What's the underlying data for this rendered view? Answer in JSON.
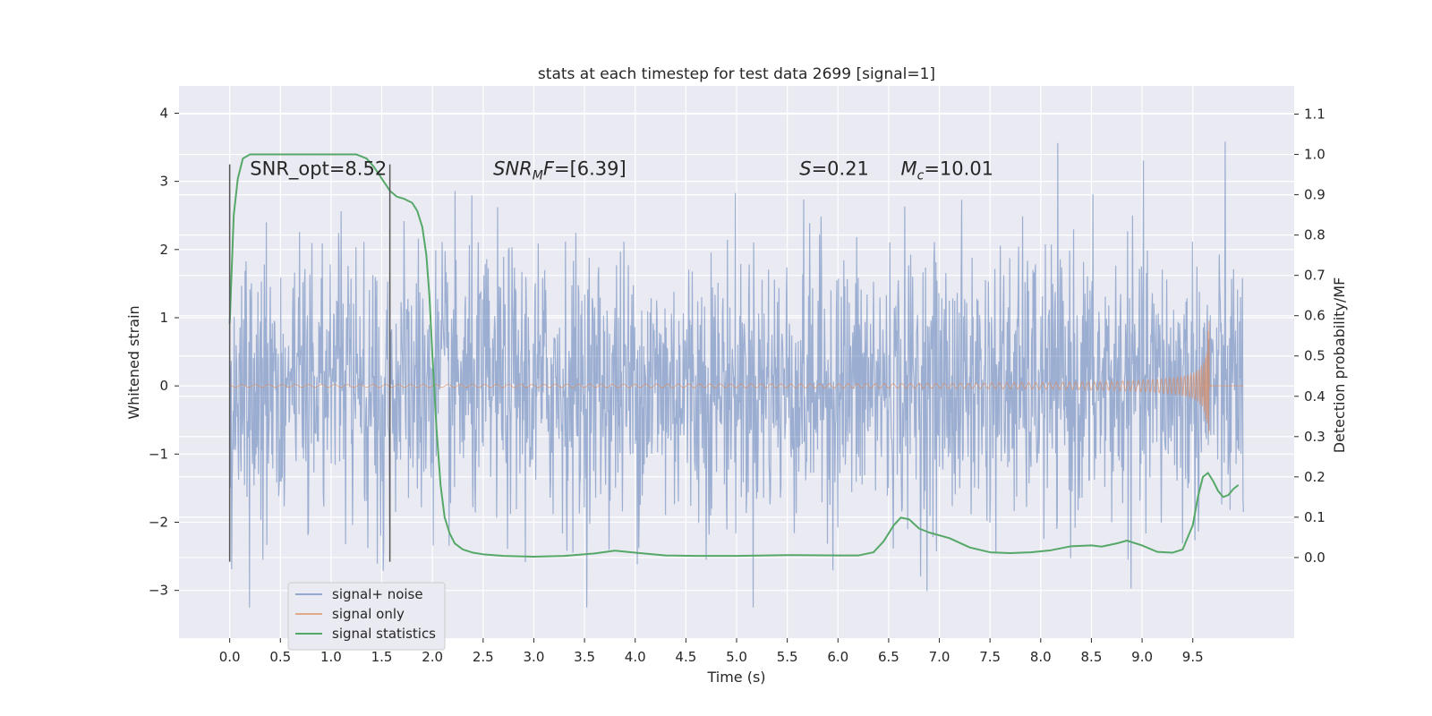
{
  "chart_data": {
    "type": "line",
    "title": "stats at each timestep for test data 2699 [signal=1]",
    "xlabel": "Time (s)",
    "ylabel": "Whitened strain",
    "ylabel_right": "Detection probability/MF",
    "xlim": [
      -0.5,
      10.5
    ],
    "ylim": [
      -3.7,
      4.4
    ],
    "ylim_right": [
      -0.2,
      1.17
    ],
    "grid": true,
    "legend_position": "lower-left",
    "xticks": [
      0.0,
      0.5,
      1.0,
      1.5,
      2.0,
      2.5,
      3.0,
      3.5,
      4.0,
      4.5,
      5.0,
      5.5,
      6.0,
      6.5,
      7.0,
      7.5,
      8.0,
      8.5,
      9.0,
      9.5
    ],
    "xtick_labels": [
      "0.0",
      "0.5",
      "1.0",
      "1.5",
      "2.0",
      "2.5",
      "3.0",
      "3.5",
      "4.0",
      "4.5",
      "5.0",
      "5.5",
      "6.0",
      "6.5",
      "7.0",
      "7.5",
      "8.0",
      "8.5",
      "9.0",
      "9.5"
    ],
    "yticks": [
      -3,
      -2,
      -1,
      0,
      1,
      2,
      3,
      4
    ],
    "ytick_labels": [
      "−3",
      "−2",
      "−1",
      "0",
      "1",
      "2",
      "3",
      "4"
    ],
    "yticks_right": [
      0.0,
      0.1,
      0.2,
      0.3,
      0.4,
      0.5,
      0.6,
      0.7,
      0.8,
      0.9,
      1.0,
      1.1
    ],
    "ytick_labels_right": [
      "0.0",
      "0.1",
      "0.2",
      "0.3",
      "0.4",
      "0.5",
      "0.6",
      "0.7",
      "0.8",
      "0.9",
      "1.0",
      "1.1"
    ],
    "vlines": [
      {
        "x": 0.0,
        "y_range": [
          -2.58,
          3.25
        ]
      },
      {
        "x": 1.58,
        "y_range": [
          -2.58,
          3.25
        ]
      }
    ],
    "annotations": [
      {
        "prefix": "SNR_opt",
        "sub": "",
        "suffix": "=8.52",
        "x": 0.2,
        "y": 3.2,
        "italic": false
      },
      {
        "prefix": "SNR",
        "sub": "M",
        "suffix": "F=[6.39]",
        "x": 2.6,
        "y": 3.2,
        "italic": true
      },
      {
        "prefix": "S",
        "sub": "",
        "suffix": "=0.21",
        "x": 5.62,
        "y": 3.2,
        "italic": true
      },
      {
        "prefix": "M",
        "sub": "c",
        "suffix": "=10.01",
        "x": 6.62,
        "y": 3.2,
        "italic": true
      }
    ],
    "series": [
      {
        "name": "signal+ noise",
        "color": "#4c72b0",
        "opacity": 0.5,
        "x_range": [
          0.0,
          10.0
        ],
        "noise_sigma": 1.0,
        "noise_clip": [
          -3.25,
          4.05
        ],
        "samples": 2048
      },
      {
        "name": "signal only",
        "color": "#dd8452",
        "opacity": 0.6,
        "x_range": [
          0.0,
          10.0
        ],
        "chirp_end": 9.66,
        "chirp_peak": 1.0
      },
      {
        "name": "signal statistics",
        "color": "#55a868",
        "axis": "right",
        "x": [
          0.0,
          0.04,
          0.08,
          0.13,
          0.2,
          0.3,
          0.5,
          0.8,
          1.1,
          1.25,
          1.35,
          1.42,
          1.5,
          1.58,
          1.65,
          1.72,
          1.8,
          1.85,
          1.9,
          1.94,
          1.97,
          2.0,
          2.04,
          2.08,
          2.12,
          2.17,
          2.22,
          2.3,
          2.4,
          2.5,
          2.7,
          3.0,
          3.3,
          3.6,
          3.8,
          4.0,
          4.3,
          4.6,
          5.0,
          5.5,
          6.0,
          6.2,
          6.35,
          6.45,
          6.55,
          6.62,
          6.7,
          6.8,
          6.9,
          7.1,
          7.3,
          7.5,
          7.7,
          7.9,
          8.1,
          8.3,
          8.5,
          8.6,
          8.75,
          8.85,
          9.0,
          9.15,
          9.3,
          9.4,
          9.5,
          9.55,
          9.6,
          9.65,
          9.7,
          9.75,
          9.8,
          9.85,
          9.9,
          9.95
        ],
        "y": [
          0.58,
          0.85,
          0.94,
          0.99,
          1.0,
          1.0,
          1.0,
          1.0,
          1.0,
          1.0,
          0.99,
          0.97,
          0.94,
          0.91,
          0.895,
          0.89,
          0.88,
          0.86,
          0.82,
          0.75,
          0.65,
          0.5,
          0.32,
          0.18,
          0.1,
          0.06,
          0.035,
          0.02,
          0.012,
          0.008,
          0.004,
          0.002,
          0.004,
          0.01,
          0.017,
          0.012,
          0.005,
          0.004,
          0.004,
          0.006,
          0.005,
          0.005,
          0.013,
          0.04,
          0.08,
          0.099,
          0.095,
          0.072,
          0.062,
          0.048,
          0.025,
          0.013,
          0.011,
          0.013,
          0.018,
          0.028,
          0.03,
          0.027,
          0.035,
          0.042,
          0.03,
          0.014,
          0.012,
          0.02,
          0.08,
          0.15,
          0.2,
          0.21,
          0.19,
          0.165,
          0.15,
          0.155,
          0.17,
          0.18
        ]
      }
    ]
  }
}
